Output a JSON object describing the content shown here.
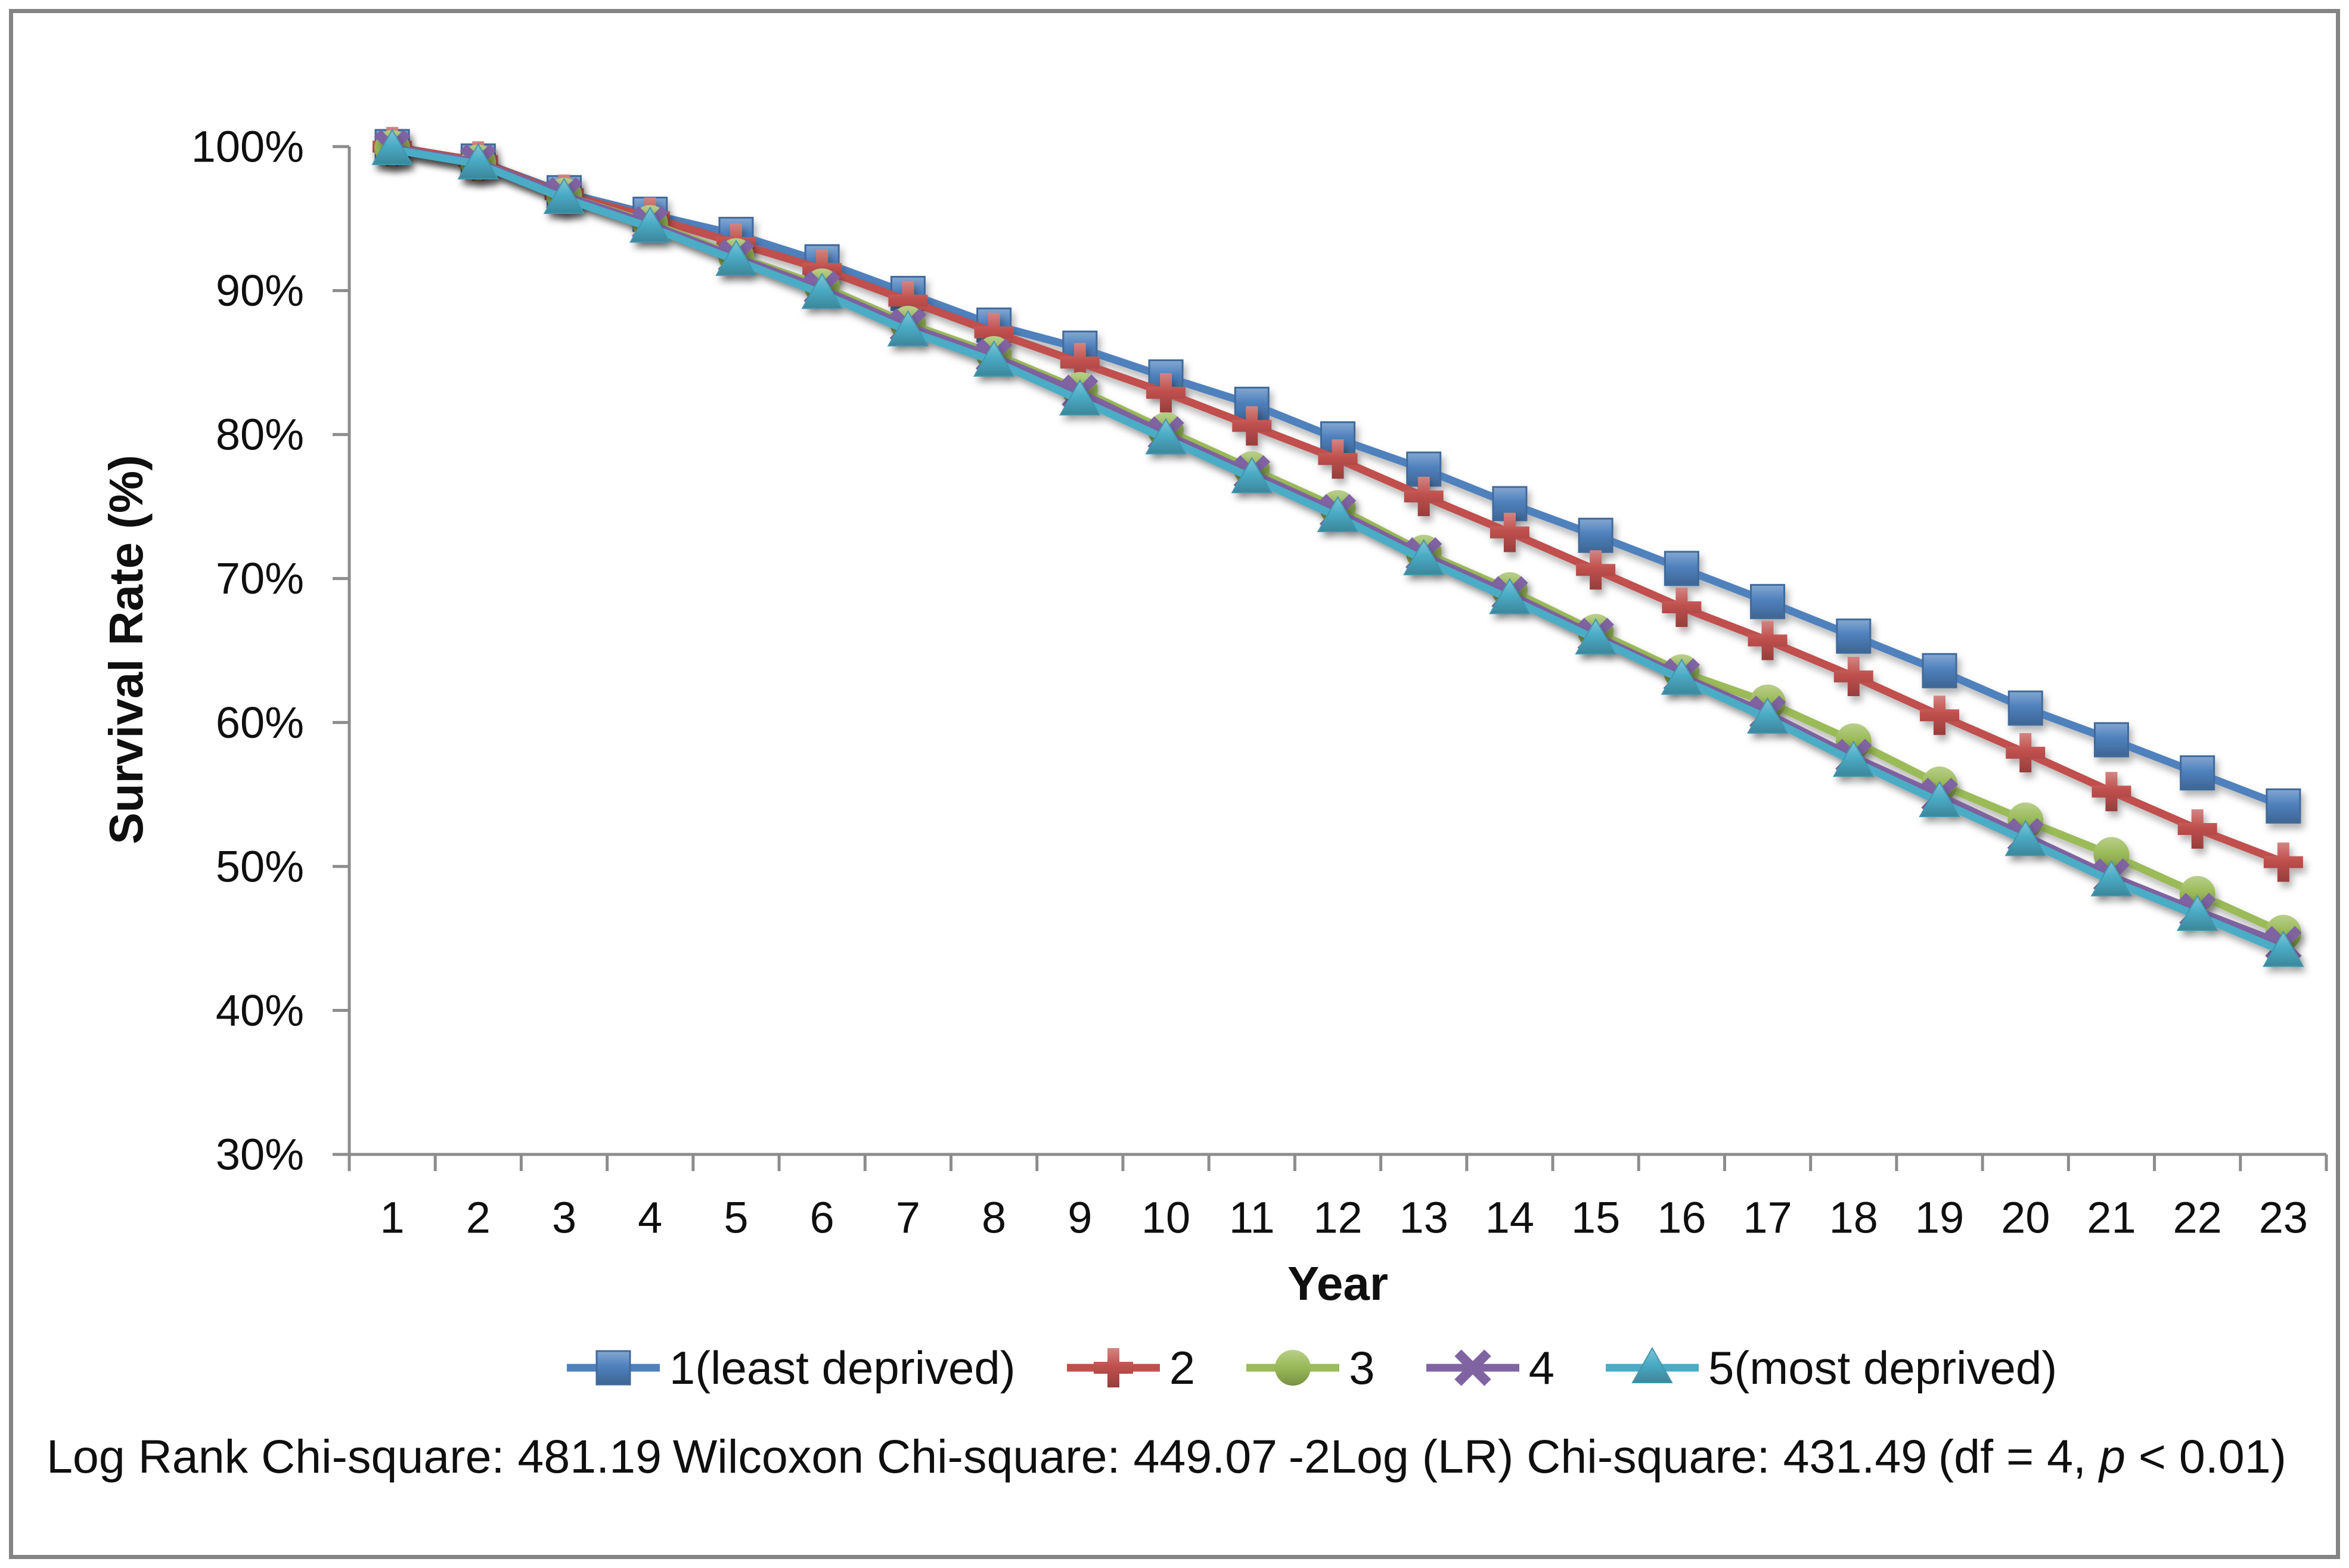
{
  "figure": {
    "background": "#FFFFFF",
    "border_color": "#848484",
    "axis_color": "#8C8C8C",
    "text_color": "#0F0F0F"
  },
  "chart_data": {
    "type": "line",
    "title": "",
    "xlabel": "Year",
    "ylabel": "Survival Rate (%)",
    "x": [
      1,
      2,
      3,
      4,
      5,
      6,
      7,
      8,
      9,
      10,
      11,
      12,
      13,
      14,
      15,
      16,
      17,
      18,
      19,
      20,
      21,
      22,
      23
    ],
    "x_tick_labels": [
      "1",
      "2",
      "3",
      "4",
      "5",
      "6",
      "7",
      "8",
      "9",
      "10",
      "11",
      "12",
      "13",
      "14",
      "15",
      "16",
      "17",
      "18",
      "19",
      "20",
      "21",
      "22",
      "23"
    ],
    "y_axis": {
      "min": 30,
      "max": 100,
      "step": 10,
      "tick_labels": [
        "100%",
        "90%",
        "80%",
        "70%",
        "60%",
        "50%",
        "40%",
        "30%"
      ]
    },
    "grid": false,
    "legend_position": "bottom",
    "series": [
      {
        "name": "1(least deprived)",
        "color": "#4F81BD",
        "marker": "square",
        "values": [
          100,
          99,
          96.8,
          95.3,
          93.9,
          92,
          89.8,
          87.6,
          86,
          84,
          82.1,
          79.7,
          77.6,
          75.2,
          73,
          70.7,
          68.4,
          66,
          63.6,
          61,
          58.8,
          56.5,
          54.2
        ]
      },
      {
        "name": "2",
        "color": "#C0504D",
        "marker": "plus",
        "values": [
          100,
          99,
          96.7,
          95.1,
          93.3,
          91.5,
          89.3,
          87.1,
          85,
          82.9,
          80.6,
          78.3,
          75.7,
          73.2,
          70.6,
          68,
          65.7,
          63.2,
          60.5,
          57.9,
          55.2,
          52.6,
          50.3
        ]
      },
      {
        "name": "3",
        "color": "#9BBB59",
        "marker": "circle",
        "values": [
          99.9,
          98.9,
          96.6,
          94.7,
          92.4,
          90.3,
          87.7,
          85.6,
          83.1,
          80.3,
          77.6,
          74.9,
          71.8,
          69.2,
          66.3,
          63.5,
          61.4,
          58.7,
          55.7,
          53.2,
          50.8,
          48.1,
          45.4
        ]
      },
      {
        "name": "4",
        "color": "#8064A2",
        "marker": "x",
        "values": [
          99.9,
          98.9,
          96.6,
          94.6,
          92.3,
          90.1,
          87.5,
          85.4,
          82.9,
          80,
          77.3,
          74.6,
          71.6,
          68.9,
          66,
          63.2,
          60.6,
          57.6,
          54.9,
          52.1,
          49.3,
          46.9,
          44.6
        ]
      },
      {
        "name": "5(most deprived)",
        "color": "#4BACC6",
        "marker": "triangle",
        "values": [
          99.8,
          98.8,
          96.4,
          94.4,
          92.1,
          89.8,
          87.2,
          85.1,
          82.4,
          79.7,
          77,
          74.3,
          71.3,
          68.6,
          65.8,
          63,
          60.3,
          57.3,
          54.5,
          51.8,
          49,
          46.6,
          44.1
        ]
      }
    ]
  },
  "stats": {
    "log_rank": "Log Rank Chi-square: 481.19",
    "wilcoxon": "Wilcoxon Chi-square: 449.07",
    "neg2log": "-2Log (LR) Chi-square: 431.49",
    "df_prefix": "(df = 4, ",
    "p_symbol": "p",
    "df_suffix": " < 0.01)"
  }
}
